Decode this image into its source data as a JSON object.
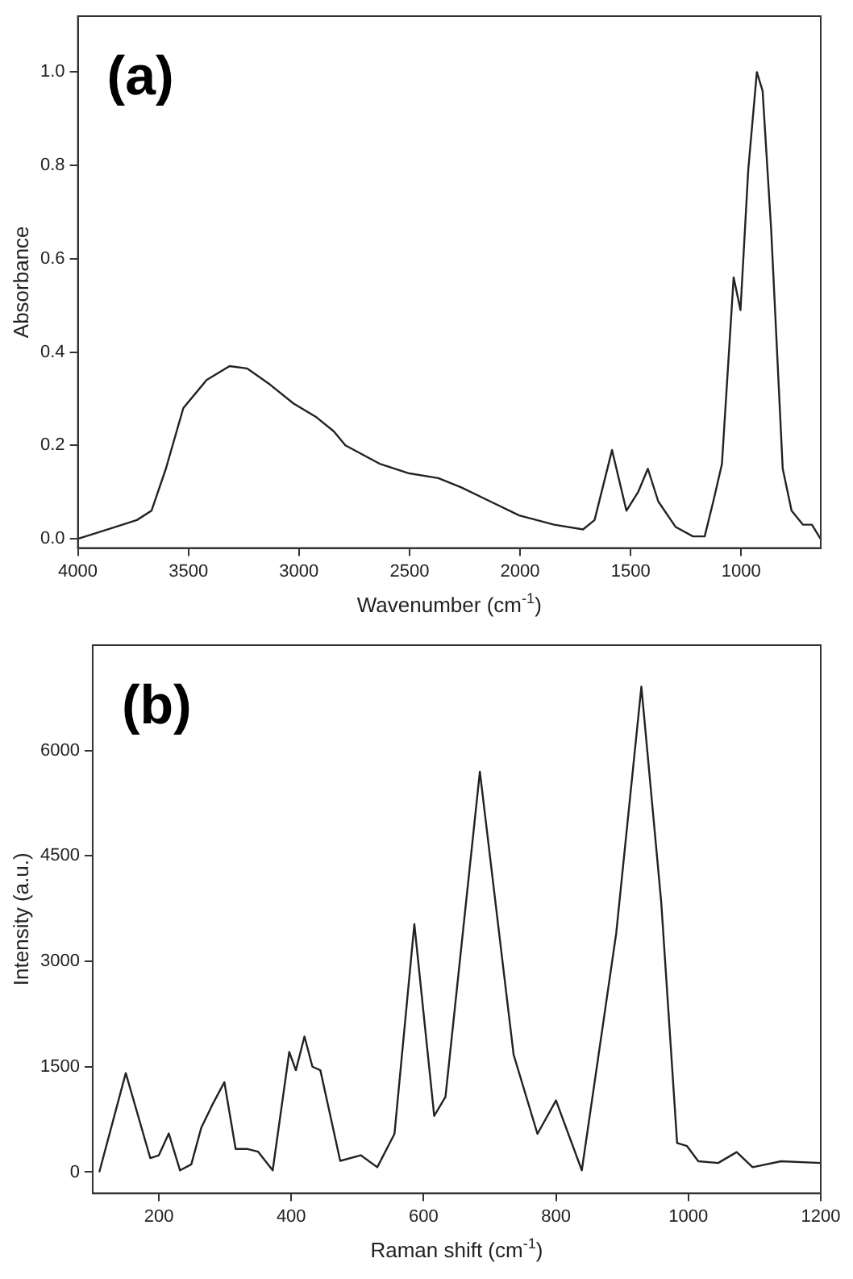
{
  "chart_data": [
    {
      "type": "line",
      "xlabel": "Wavenumber (cm$^{-1}$)",
      "ylabel": "Absorbance",
      "annotations": [
        "(a)"
      ],
      "xlim": [
        4000,
        640
      ],
      "ylim": [
        -0.02,
        1.12
      ],
      "xticks": [
        4000,
        3500,
        3000,
        2500,
        2000,
        1500,
        1000
      ],
      "yticks": [
        {
          "value": 0,
          "label": "0.0"
        },
        {
          "value": 0.2,
          "label": "0.2"
        },
        {
          "value": 0.4,
          "label": "0.4"
        },
        {
          "value": 0.6,
          "label": "0.6"
        },
        {
          "value": 0.8,
          "label": "0.8"
        },
        {
          "value": 1,
          "label": "1.0"
        }
      ],
      "grid": false,
      "legend": false,
      "marker": "none",
      "line_style": "solid",
      "series": [
        {
          "color": "#222222",
          "x": [
            4000,
            3864,
            3733,
            3667,
            3602,
            3523,
            3418,
            3314,
            3235,
            3130,
            3025,
            2920,
            2842,
            2790,
            2632,
            2501,
            2370,
            2266,
            2135,
            2004,
            1846,
            1715,
            1663,
            1584,
            1519,
            1466,
            1422,
            1375,
            1296,
            1218,
            1165,
            1126,
            1087,
            1034,
            1003,
            968,
            929,
            903,
            864,
            812,
            772,
            720,
            680,
            641
          ],
          "values": [
            0.0,
            0.02,
            0.04,
            0.06,
            0.15,
            0.28,
            0.34,
            0.37,
            0.365,
            0.33,
            0.29,
            0.26,
            0.23,
            0.2,
            0.16,
            0.14,
            0.13,
            0.11,
            0.08,
            0.05,
            0.03,
            0.02,
            0.04,
            0.19,
            0.06,
            0.1,
            0.15,
            0.08,
            0.025,
            0.005,
            0.005,
            0.08,
            0.16,
            0.56,
            0.49,
            0.79,
            1.0,
            0.96,
            0.66,
            0.15,
            0.06,
            0.03,
            0.03,
            0.0
          ]
        }
      ]
    },
    {
      "type": "line",
      "xlabel": "Raman shift (cm$^{-1}$)",
      "ylabel": "Intensity (a.u.)",
      "annotations": [
        "(b)"
      ],
      "xlim": [
        100,
        1200
      ],
      "ylim": [
        -300,
        7500
      ],
      "xticks": [
        200,
        400,
        600,
        800,
        1000,
        1200
      ],
      "yticks": [
        0,
        1500,
        3000,
        4500,
        6000
      ],
      "grid": false,
      "legend": false,
      "marker": "none",
      "line_style": "solid",
      "series": [
        {
          "color": "#222222",
          "x": [
            110,
            150,
            187,
            200,
            215,
            232,
            249,
            264,
            282,
            299,
            316,
            333,
            350,
            372,
            397,
            407,
            420,
            432,
            444,
            474,
            505,
            530,
            556,
            586,
            616,
            633,
            685,
            736,
            772,
            800,
            839,
            891,
            929,
            959,
            983,
            998,
            1015,
            1045,
            1073,
            1097,
            1140,
            1200
          ],
          "values": [
            0,
            1410,
            200,
            240,
            550,
            25,
            110,
            630,
            980,
            1280,
            330,
            330,
            290,
            25,
            1710,
            1450,
            1930,
            1500,
            1450,
            160,
            240,
            70,
            545,
            3530,
            800,
            1070,
            5700,
            1670,
            545,
            1020,
            25,
            3400,
            6910,
            3840,
            415,
            370,
            155,
            130,
            285,
            70,
            155,
            130
          ]
        }
      ]
    }
  ]
}
